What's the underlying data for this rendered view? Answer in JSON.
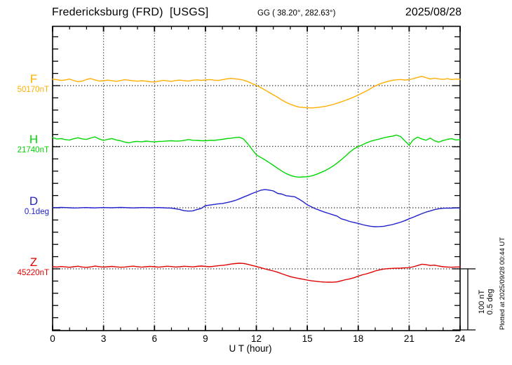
{
  "header": {
    "station": "Fredericksburg (FRD)  [USGS]",
    "coords": "GG ( 38.20°, 282.63°)",
    "date": "2025/08/28"
  },
  "chart_data": {
    "type": "line",
    "title": "Fredericksburg (FRD) [USGS] magnetogram 2025/08/28",
    "xlabel": "U T (hour)",
    "x_range": [
      0,
      24
    ],
    "x_ticks": [
      0,
      3,
      6,
      9,
      12,
      15,
      18,
      21,
      24
    ],
    "x_step_hours": 0.25,
    "gridlines_hours": [
      3,
      6,
      9,
      12,
      15,
      18,
      21
    ],
    "grid": "dotted",
    "scale_bar": {
      "labels": [
        "100 nT",
        "0.5 deg"
      ],
      "nT_per_bar": 100,
      "deg_per_bar": 0.5
    },
    "footnote": "Plotted at 2025/09/28 00:44 UT",
    "values_are": "offsets from baseline_value, sampled every 0.25 hour",
    "series": [
      {
        "name": "F",
        "baseline_label": "50170nT",
        "baseline_value": 50170,
        "unit": "nT",
        "color": "#FFAE00",
        "values": [
          10.5,
          9.8,
          8.5,
          9.2,
          10.8,
          8.2,
          6.5,
          7.3,
          10.2,
          11.5,
          9.3,
          7.5,
          8.1,
          9.0,
          8.2,
          7.0,
          8.3,
          9.6,
          8.8,
          7.9,
          7.2,
          8.0,
          7.4,
          6.3,
          6.0,
          7.2,
          8.6,
          7.8,
          7.0,
          8.4,
          9.0,
          8.2,
          7.6,
          8.8,
          9.4,
          8.6,
          9.2,
          10.0,
          9.0,
          8.4,
          9.6,
          11.0,
          11.8,
          11.2,
          10.4,
          9.0,
          6.5,
          3.5,
          0.5,
          -3.0,
          -7.0,
          -11.0,
          -15.0,
          -19.0,
          -23.5,
          -27.5,
          -30.5,
          -33.0,
          -35.0,
          -35.8,
          -36.2,
          -36.5,
          -36.0,
          -35.2,
          -34.3,
          -32.8,
          -31.0,
          -28.8,
          -26.5,
          -24.0,
          -21.5,
          -18.5,
          -15.5,
          -12.0,
          -8.5,
          -4.5,
          -0.5,
          2.5,
          5.0,
          7.0,
          8.5,
          9.5,
          10.0,
          9.2,
          9.8,
          11.5,
          13.5,
          15.2,
          13.0,
          11.0,
          12.2,
          11.0,
          10.2,
          11.4,
          10.0,
          10.8,
          10.4
        ]
      },
      {
        "name": "H",
        "baseline_label": "21740nT",
        "baseline_value": 21740,
        "unit": "nT",
        "color": "#00D800",
        "values": [
          14.5,
          12.0,
          12.8,
          11.0,
          10.2,
          12.5,
          14.0,
          12.2,
          11.4,
          13.8,
          15.5,
          12.0,
          9.8,
          11.5,
          12.8,
          10.5,
          9.2,
          7.0,
          5.8,
          7.5,
          8.2,
          7.4,
          8.6,
          7.8,
          7.4,
          8.0,
          8.3,
          8.8,
          9.2,
          8.5,
          8.8,
          9.6,
          11.2,
          10.0,
          9.8,
          9.2,
          9.2,
          9.8,
          9.8,
          10.6,
          11.5,
          12.6,
          13.3,
          14.2,
          15.0,
          12.0,
          4.0,
          -5.0,
          -13.9,
          -18.0,
          -22.0,
          -26.5,
          -31.0,
          -36.0,
          -40.5,
          -44.5,
          -47.5,
          -49.5,
          -50.5,
          -50.0,
          -49.8,
          -48.5,
          -46.2,
          -43.5,
          -40.5,
          -36.8,
          -32.5,
          -27.5,
          -22.0,
          -16.0,
          -9.5,
          -4.0,
          -0.5,
          2.5,
          6.0,
          8.5,
          10.5,
          12.0,
          14.0,
          15.5,
          16.5,
          18.5,
          16.0,
          9.0,
          2.0,
          11.0,
          15.0,
          12.0,
          10.0,
          13.5,
          9.0,
          7.0,
          9.5,
          11.5,
          12.5,
          10.5,
          11.0
        ]
      },
      {
        "name": "D",
        "baseline_label": "0.1deg",
        "baseline_value": 0.1,
        "unit": "deg",
        "color": "#2222CC",
        "values": [
          0.002,
          0.001,
          0.003,
          0.002,
          0.0,
          -0.002,
          -0.001,
          0.001,
          0.002,
          0.0,
          -0.001,
          0.001,
          0.002,
          0.001,
          0.0,
          0.002,
          0.003,
          0.002,
          0.0,
          -0.001,
          0.0,
          0.002,
          0.001,
          0.0,
          0.001,
          0.002,
          0.0,
          -0.002,
          -0.003,
          -0.008,
          -0.015,
          -0.024,
          -0.027,
          -0.025,
          -0.015,
          -0.005,
          0.017,
          0.022,
          0.027,
          0.032,
          0.035,
          0.042,
          0.05,
          0.06,
          0.073,
          0.088,
          0.102,
          0.117,
          0.13,
          0.143,
          0.149,
          0.145,
          0.138,
          0.118,
          0.112,
          0.099,
          0.094,
          0.09,
          0.072,
          0.05,
          0.024,
          0.007,
          -0.009,
          -0.022,
          -0.035,
          -0.046,
          -0.057,
          -0.068,
          -0.09,
          -0.1,
          -0.112,
          -0.12,
          -0.128,
          -0.138,
          -0.146,
          -0.152,
          -0.155,
          -0.154,
          -0.152,
          -0.145,
          -0.138,
          -0.128,
          -0.118,
          -0.105,
          -0.09,
          -0.077,
          -0.062,
          -0.048,
          -0.035,
          -0.025,
          -0.015,
          -0.008,
          -0.004,
          -0.003,
          -0.003,
          -0.002,
          -0.002
        ]
      },
      {
        "name": "Z",
        "baseline_label": "45220nT",
        "baseline_value": 45220,
        "unit": "nT",
        "color": "#E00000",
        "values": [
          3.5,
          3.0,
          3.8,
          3.2,
          2.5,
          3.4,
          4.2,
          3.0,
          2.4,
          3.2,
          4.5,
          3.6,
          2.8,
          3.5,
          4.0,
          3.2,
          2.6,
          3.0,
          3.8,
          4.4,
          3.6,
          2.8,
          3.4,
          4.0,
          3.4,
          2.8,
          3.6,
          4.2,
          3.8,
          3.0,
          3.5,
          4.3,
          3.8,
          3.2,
          4.0,
          4.6,
          4.0,
          3.4,
          4.2,
          5.0,
          5.6,
          6.5,
          7.8,
          8.6,
          9.2,
          8.8,
          7.4,
          5.5,
          3.8,
          2.0,
          0.0,
          -1.8,
          -3.5,
          -5.5,
          -8.0,
          -10.5,
          -12.8,
          -14.5,
          -15.8,
          -17.0,
          -18.4,
          -19.6,
          -20.4,
          -21.2,
          -21.6,
          -21.8,
          -22.0,
          -21.4,
          -19.6,
          -17.8,
          -16.4,
          -14.6,
          -12.0,
          -9.8,
          -8.0,
          -6.0,
          -3.5,
          -1.8,
          -0.4,
          0.4,
          0.8,
          1.0,
          1.2,
          1.6,
          2.0,
          3.5,
          5.4,
          7.6,
          6.8,
          5.5,
          6.0,
          4.6,
          3.4,
          3.0,
          2.6,
          3.0,
          3.2
        ]
      }
    ]
  }
}
